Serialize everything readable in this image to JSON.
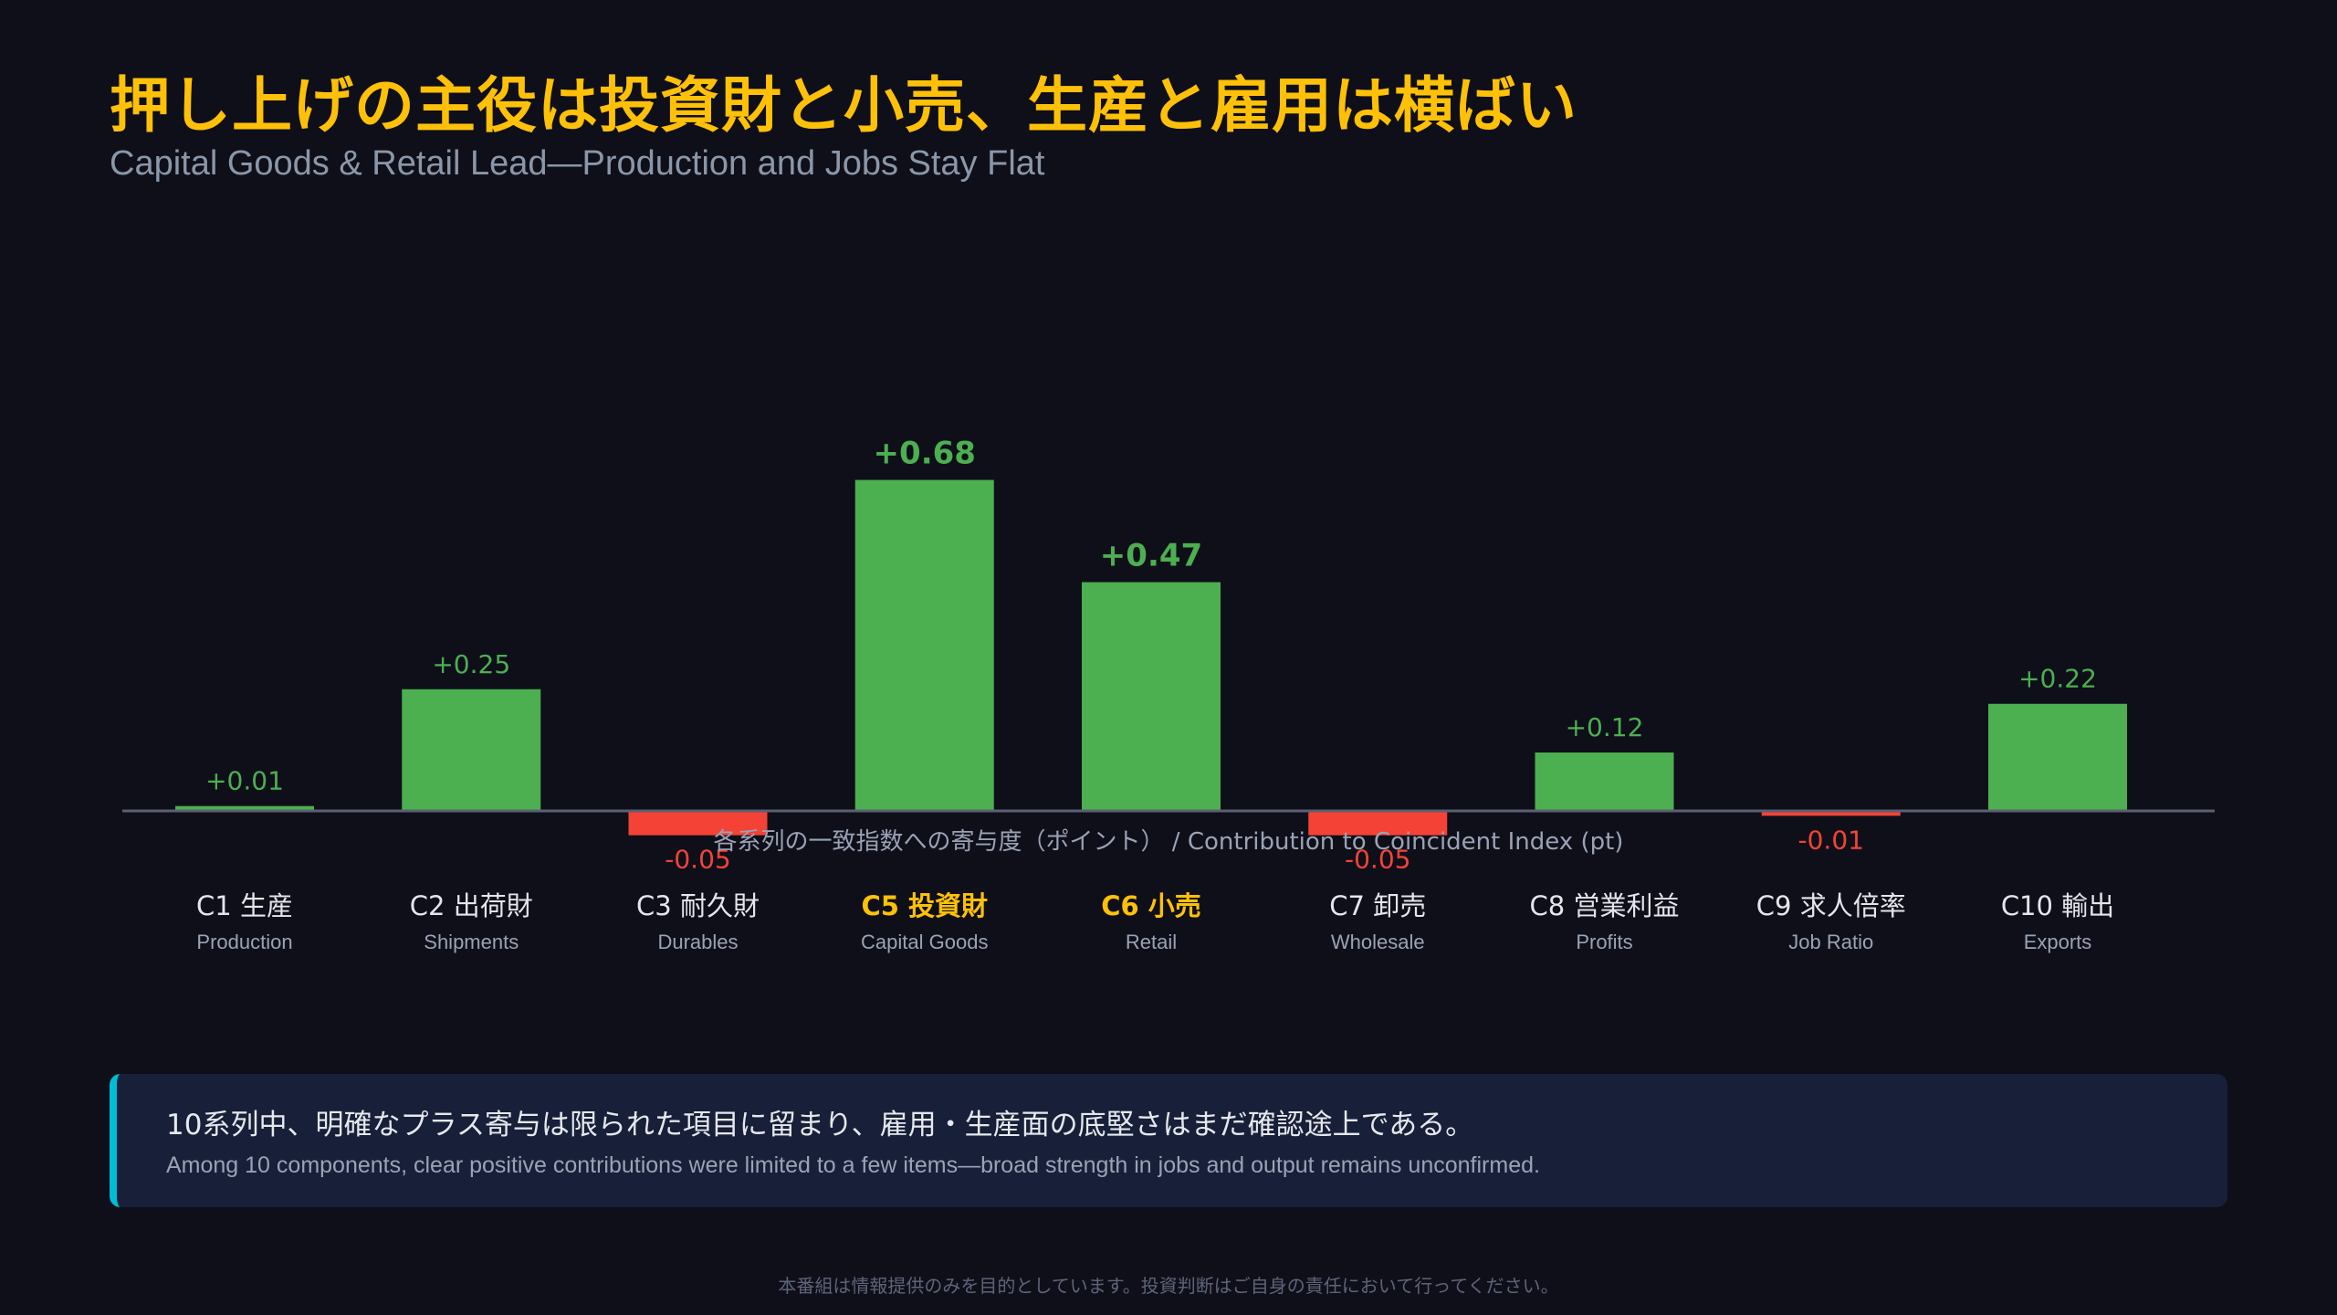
{
  "header": {
    "title": "押し上げの主役は投資財と小売、生産と雇用は横ばい",
    "subtitle": "Capital Goods & Retail Lead—Production and Jobs Stay Flat"
  },
  "chart_data": {
    "type": "bar",
    "xlabel": "各系列の一致指数への寄与度（ポイント） / Contribution to Coincident Index (pt)",
    "categories": [
      {
        "code": "C1",
        "jp": "生産",
        "en": "Production",
        "highlight": false
      },
      {
        "code": "C2",
        "jp": "出荷財",
        "en": "Shipments",
        "highlight": false
      },
      {
        "code": "C3",
        "jp": "耐久財",
        "en": "Durables",
        "highlight": false
      },
      {
        "code": "C5",
        "jp": "投資財",
        "en": "Capital Goods",
        "highlight": true
      },
      {
        "code": "C6",
        "jp": "小売",
        "en": "Retail",
        "highlight": true
      },
      {
        "code": "C7",
        "jp": "卸売",
        "en": "Wholesale",
        "highlight": false
      },
      {
        "code": "C8",
        "jp": "営業利益",
        "en": "Profits",
        "highlight": false
      },
      {
        "code": "C9",
        "jp": "求人倍率",
        "en": "Job Ratio",
        "highlight": false
      },
      {
        "code": "C10",
        "jp": "輸出",
        "en": "Exports",
        "highlight": false
      }
    ],
    "values": [
      0.01,
      0.25,
      -0.05,
      0.68,
      0.47,
      -0.05,
      0.12,
      -0.01,
      0.22
    ],
    "value_labels": [
      "+0.01",
      "+0.25",
      "-0.05",
      "+0.68",
      "+0.47",
      "-0.05",
      "+0.12",
      "-0.01",
      "+0.22"
    ],
    "colors": {
      "positive": "#4caf50",
      "negative": "#f44336",
      "highlight": "#ffc107",
      "baseline": "#5a5f73"
    }
  },
  "note": {
    "jp": "10系列中、明確なプラス寄与は限られた項目に留まり、雇用・生産面の底堅さはまだ確認途上である。",
    "en": "Among 10 components, clear positive contributions were limited to a few items—broad strength in jobs and output remains unconfirmed."
  },
  "footer": "本番組は情報提供のみを目的としています。投資判断はご自身の責任において行ってください。"
}
